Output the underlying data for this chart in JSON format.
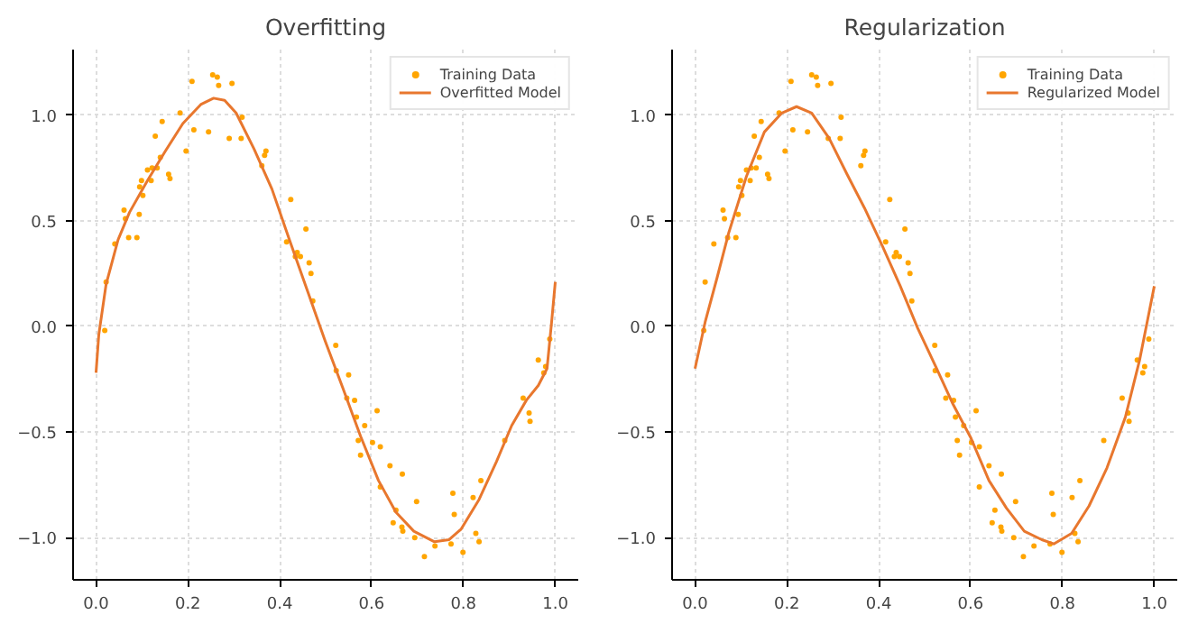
{
  "chart_data": [
    {
      "type": "scatter",
      "title": "Overfitting",
      "xlim": [
        -0.05,
        1.05
      ],
      "ylim": [
        -1.2,
        1.31
      ],
      "xticks": [
        {
          "value": 0,
          "label": "0.0"
        },
        {
          "value": 0.2,
          "label": "0.2"
        },
        {
          "value": 0.4,
          "label": "0.4"
        },
        {
          "value": 0.6,
          "label": "0.6"
        },
        {
          "value": 0.8,
          "label": "0.8"
        },
        {
          "value": 1,
          "label": "1.0"
        }
      ],
      "yticks": [
        {
          "value": -1,
          "label": "−1.0"
        },
        {
          "value": -0.5,
          "label": "−0.5"
        },
        {
          "value": 0,
          "label": "0.0"
        },
        {
          "value": 0.5,
          "label": "0.5"
        },
        {
          "value": 1,
          "label": "1.0"
        }
      ],
      "grid": true,
      "legend": "top right",
      "series": [
        {
          "name": "Training Data",
          "marker": "circle",
          "color": "#ffa500",
          "x": [
            0.019,
            0.022,
            0.041,
            0.061,
            0.064,
            0.071,
            0.089,
            0.094,
            0.095,
            0.099,
            0.102,
            0.112,
            0.12,
            0.122,
            0.129,
            0.133,
            0.14,
            0.144,
            0.158,
            0.161,
            0.183,
            0.196,
            0.209,
            0.213,
            0.245,
            0.254,
            0.264,
            0.267,
            0.29,
            0.296,
            0.316,
            0.318,
            0.361,
            0.367,
            0.37,
            0.415,
            0.424,
            0.434,
            0.438,
            0.445,
            0.457,
            0.464,
            0.468,
            0.472,
            0.522,
            0.523,
            0.546,
            0.55,
            0.563,
            0.567,
            0.571,
            0.576,
            0.585,
            0.602,
            0.612,
            0.619,
            0.619,
            0.64,
            0.647,
            0.653,
            0.666,
            0.667,
            0.668,
            0.694,
            0.698,
            0.715,
            0.738,
            0.773,
            0.777,
            0.78,
            0.799,
            0.821,
            0.827,
            0.834,
            0.838,
            0.89,
            0.93,
            0.943,
            0.945,
            0.963,
            0.975,
            0.979,
            0.988
          ],
          "values": [
            -0.02,
            0.21,
            0.39,
            0.55,
            0.51,
            0.42,
            0.42,
            0.53,
            0.66,
            0.69,
            0.62,
            0.74,
            0.69,
            0.75,
            0.9,
            0.75,
            0.8,
            0.97,
            0.72,
            0.7,
            1.01,
            0.83,
            1.16,
            0.93,
            0.92,
            1.19,
            1.18,
            1.14,
            0.89,
            1.15,
            0.89,
            0.99,
            0.76,
            0.81,
            0.83,
            0.4,
            0.6,
            0.33,
            0.35,
            0.33,
            0.46,
            0.3,
            0.25,
            0.12,
            -0.09,
            -0.21,
            -0.34,
            -0.23,
            -0.35,
            -0.43,
            -0.54,
            -0.61,
            -0.47,
            -0.55,
            -0.4,
            -0.57,
            -0.76,
            -0.66,
            -0.93,
            -0.87,
            -0.95,
            -0.7,
            -0.97,
            -1.0,
            -0.83,
            -1.09,
            -1.04,
            -1.03,
            -0.79,
            -0.89,
            -1.07,
            -0.81,
            -0.98,
            -1.02,
            -0.73,
            -0.54,
            -0.34,
            -0.41,
            -0.45,
            -0.16,
            -0.22,
            -0.19,
            -0.06
          ]
        },
        {
          "name": "Overfitted Model",
          "type": "line",
          "line_style": "solid",
          "color": "#e8772e",
          "x": [
            0,
            0.006,
            0.022,
            0.048,
            0.073,
            0.112,
            0.151,
            0.189,
            0.228,
            0.256,
            0.28,
            0.305,
            0.344,
            0.383,
            0.421,
            0.46,
            0.499,
            0.537,
            0.576,
            0.615,
            0.653,
            0.692,
            0.737,
            0.769,
            0.795,
            0.834,
            0.872,
            0.905,
            0.937,
            0.963,
            0.982,
            0.992,
            1.0
          ],
          "values": [
            -0.22,
            -0.04,
            0.2,
            0.41,
            0.54,
            0.69,
            0.83,
            0.96,
            1.05,
            1.08,
            1.07,
            1.01,
            0.84,
            0.65,
            0.41,
            0.17,
            -0.07,
            -0.29,
            -0.52,
            -0.73,
            -0.88,
            -0.97,
            -1.02,
            -1.01,
            -0.96,
            -0.82,
            -0.64,
            -0.47,
            -0.35,
            -0.28,
            -0.2,
            0.02,
            0.21
          ]
        }
      ]
    },
    {
      "type": "scatter",
      "title": "Regularization",
      "xlim": [
        -0.05,
        1.05
      ],
      "ylim": [
        -1.2,
        1.31
      ],
      "xticks": [
        {
          "value": 0,
          "label": "0.0"
        },
        {
          "value": 0.2,
          "label": "0.2"
        },
        {
          "value": 0.4,
          "label": "0.4"
        },
        {
          "value": 0.6,
          "label": "0.6"
        },
        {
          "value": 0.8,
          "label": "0.8"
        },
        {
          "value": 1,
          "label": "1.0"
        }
      ],
      "yticks": [
        {
          "value": -1,
          "label": "−1.0"
        },
        {
          "value": -0.5,
          "label": "−0.5"
        },
        {
          "value": 0,
          "label": "0.0"
        },
        {
          "value": 0.5,
          "label": "0.5"
        },
        {
          "value": 1,
          "label": "1.0"
        }
      ],
      "grid": true,
      "legend": "top right",
      "series": [
        {
          "name": "Training Data",
          "marker": "circle",
          "color": "#ffa500",
          "x": [
            0.019,
            0.022,
            0.041,
            0.061,
            0.064,
            0.071,
            0.089,
            0.094,
            0.095,
            0.099,
            0.102,
            0.112,
            0.12,
            0.122,
            0.129,
            0.133,
            0.14,
            0.144,
            0.158,
            0.161,
            0.183,
            0.196,
            0.209,
            0.213,
            0.245,
            0.254,
            0.264,
            0.267,
            0.29,
            0.296,
            0.316,
            0.318,
            0.361,
            0.367,
            0.37,
            0.415,
            0.424,
            0.434,
            0.438,
            0.445,
            0.457,
            0.464,
            0.468,
            0.472,
            0.522,
            0.523,
            0.546,
            0.55,
            0.563,
            0.567,
            0.571,
            0.576,
            0.585,
            0.602,
            0.612,
            0.619,
            0.619,
            0.64,
            0.647,
            0.653,
            0.666,
            0.667,
            0.668,
            0.694,
            0.698,
            0.715,
            0.738,
            0.773,
            0.777,
            0.78,
            0.799,
            0.821,
            0.827,
            0.834,
            0.838,
            0.89,
            0.93,
            0.943,
            0.945,
            0.963,
            0.975,
            0.979,
            0.988
          ],
          "values": [
            -0.02,
            0.21,
            0.39,
            0.55,
            0.51,
            0.42,
            0.42,
            0.53,
            0.66,
            0.69,
            0.62,
            0.74,
            0.69,
            0.75,
            0.9,
            0.75,
            0.8,
            0.97,
            0.72,
            0.7,
            1.01,
            0.83,
            1.16,
            0.93,
            0.92,
            1.19,
            1.18,
            1.14,
            0.89,
            1.15,
            0.89,
            0.99,
            0.76,
            0.81,
            0.83,
            0.4,
            0.6,
            0.33,
            0.35,
            0.33,
            0.46,
            0.3,
            0.25,
            0.12,
            -0.09,
            -0.21,
            -0.34,
            -0.23,
            -0.35,
            -0.43,
            -0.54,
            -0.61,
            -0.47,
            -0.55,
            -0.4,
            -0.57,
            -0.76,
            -0.66,
            -0.93,
            -0.87,
            -0.95,
            -0.7,
            -0.97,
            -1.0,
            -0.83,
            -1.09,
            -1.04,
            -1.03,
            -0.79,
            -0.89,
            -1.07,
            -0.81,
            -0.98,
            -1.02,
            -0.73,
            -0.54,
            -0.34,
            -0.41,
            -0.45,
            -0.16,
            -0.22,
            -0.19,
            -0.06
          ]
        },
        {
          "name": "Regularized Model",
          "type": "line",
          "line_style": "solid",
          "color": "#e8772e",
          "x": [
            0,
            0.022,
            0.048,
            0.073,
            0.112,
            0.151,
            0.189,
            0.221,
            0.254,
            0.292,
            0.331,
            0.369,
            0.408,
            0.447,
            0.485,
            0.524,
            0.562,
            0.601,
            0.64,
            0.678,
            0.717,
            0.755,
            0.781,
            0.82,
            0.858,
            0.897,
            0.937,
            0.968,
            1.0
          ],
          "values": [
            -0.2,
            0.02,
            0.23,
            0.44,
            0.71,
            0.92,
            1.01,
            1.04,
            1.01,
            0.89,
            0.72,
            0.56,
            0.38,
            0.19,
            -0.01,
            -0.19,
            -0.37,
            -0.53,
            -0.73,
            -0.86,
            -0.97,
            -1.01,
            -1.03,
            -0.98,
            -0.85,
            -0.67,
            -0.43,
            -0.16,
            0.19
          ]
        }
      ]
    }
  ]
}
